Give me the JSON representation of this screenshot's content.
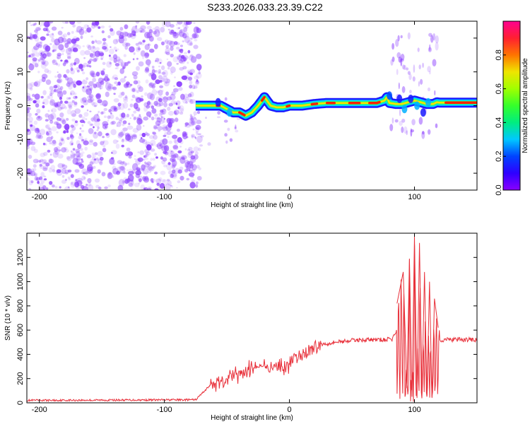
{
  "title": "S233.2026.033.23.39.C22",
  "colors": {
    "trace": "#e8303a",
    "noise": "#8a3cff",
    "frame": "#000000"
  },
  "chart_data": [
    {
      "type": "heatmap",
      "name": "spectrogram",
      "xlabel": "Height of straight line (km)",
      "ylabel": "Frequency (Hz)",
      "xlim": [
        -210,
        150
      ],
      "ylim": [
        -25,
        25
      ],
      "xticks": [
        -200,
        -100,
        0,
        100
      ],
      "yticks": [
        -20,
        -10,
        0,
        10,
        20
      ],
      "noise_region": [
        -210,
        -75
      ],
      "ridge": {
        "x": [
          -75,
          -70,
          -62,
          -55,
          -50,
          -45,
          -40,
          -35,
          -30,
          -25,
          -20,
          -15,
          -10,
          -5,
          0,
          10,
          20,
          30,
          40,
          50,
          60,
          70,
          76,
          78,
          80,
          85,
          90,
          95,
          100,
          105,
          110,
          115,
          118,
          120,
          150
        ],
        "y": [
          0,
          0,
          0,
          0,
          -1,
          -2,
          -2,
          -3,
          -2,
          0,
          2.5,
          0,
          -0.5,
          -0.5,
          0,
          0,
          0.5,
          0.8,
          0.8,
          0.8,
          0.8,
          0.8,
          1.5,
          2.5,
          0.8,
          0.5,
          0.5,
          1,
          1.5,
          1,
          0.5,
          0.5,
          1,
          0.9,
          0.9
        ]
      },
      "colorbar": {
        "label": "Normalized spectral amplitude",
        "ticks": [
          0.0,
          0.2,
          0.4,
          0.6,
          0.8
        ],
        "range": [
          0,
          1
        ]
      }
    },
    {
      "type": "line",
      "name": "snr",
      "xlabel": "Height of straight line (km)",
      "ylabel": "SNR (10 * v/v)",
      "xlim": [
        -210,
        150
      ],
      "ylim": [
        0,
        1400
      ],
      "xticks": [
        -200,
        -100,
        0,
        100
      ],
      "yticks": [
        0,
        200,
        400,
        600,
        800,
        1000,
        1200
      ],
      "envelope": {
        "x": [
          -210,
          -75,
          -63,
          -55,
          -45,
          -35,
          -25,
          -15,
          -5,
          5,
          15,
          25,
          35,
          45,
          55,
          65,
          75,
          82,
          86,
          88,
          120,
          150
        ],
        "y": [
          20,
          25,
          150,
          180,
          220,
          260,
          300,
          300,
          300,
          360,
          430,
          480,
          500,
          510,
          520,
          520,
          520,
          525,
          600,
          520,
          520,
          520
        ]
      },
      "spikes": {
        "x": [
          86,
          91,
          94,
          96,
          98,
          100,
          102,
          104,
          106,
          108,
          110,
          112,
          114,
          116,
          119
        ],
        "y": [
          820,
          1080,
          120,
          1190,
          50,
          1375,
          40,
          1320,
          80,
          1080,
          60,
          1000,
          40,
          860,
          620
        ]
      }
    }
  ]
}
